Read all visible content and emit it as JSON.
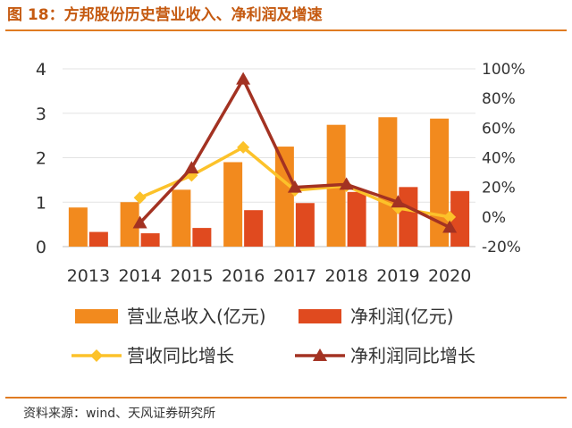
{
  "figure_title": "图 18：方邦股份历史营业收入、净利润及增速",
  "source": "资料来源：wind、天风证券研究所",
  "colors": {
    "revenue": "#f28a1e",
    "profit": "#e04a1f",
    "revenue_growth": "#fcc22a",
    "profit_growth": "#a33222",
    "title": "#c55a11",
    "rule": "#e07b22"
  },
  "chart_data": {
    "type": "bar",
    "categories": [
      "2013",
      "2014",
      "2015",
      "2016",
      "2017",
      "2018",
      "2019",
      "2020"
    ],
    "left_axis": {
      "min": 0,
      "max": 4,
      "ticks": [
        "0",
        "1",
        "2",
        "3",
        "4"
      ]
    },
    "right_axis": {
      "min": -20,
      "max": 100,
      "ticks": [
        "-20%",
        "0%",
        "20%",
        "40%",
        "60%",
        "80%",
        "100%"
      ]
    },
    "grid": true,
    "legend_position": "bottom",
    "series": [
      {
        "name": "营业总收入(亿元)",
        "type": "bar",
        "axis": "left",
        "values": [
          0.88,
          1.0,
          1.28,
          1.9,
          2.25,
          2.74,
          2.91,
          2.88
        ]
      },
      {
        "name": "净利润(亿元)",
        "type": "bar",
        "axis": "left",
        "values": [
          0.33,
          0.3,
          0.42,
          0.82,
          0.98,
          1.23,
          1.34,
          1.25
        ]
      },
      {
        "name": "营收同比增长",
        "type": "line",
        "axis": "right",
        "marker": "diamond",
        "values": [
          null,
          13,
          28,
          47,
          18,
          21,
          6,
          0
        ]
      },
      {
        "name": "净利润同比增长",
        "type": "line",
        "axis": "right",
        "marker": "triangle",
        "values": [
          null,
          -4,
          33,
          93,
          20,
          22,
          10,
          -7
        ]
      }
    ]
  }
}
